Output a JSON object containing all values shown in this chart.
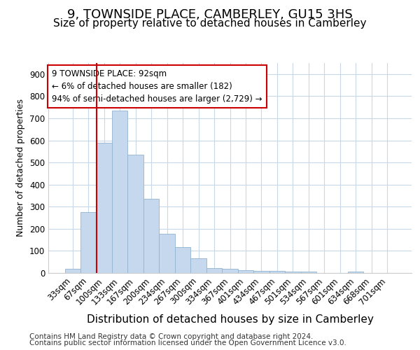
{
  "title": "9, TOWNSIDE PLACE, CAMBERLEY, GU15 3HS",
  "subtitle": "Size of property relative to detached houses in Camberley",
  "xlabel": "Distribution of detached houses by size in Camberley",
  "ylabel": "Number of detached properties",
  "categories": [
    "33sqm",
    "67sqm",
    "100sqm",
    "133sqm",
    "167sqm",
    "200sqm",
    "234sqm",
    "267sqm",
    "300sqm",
    "334sqm",
    "367sqm",
    "401sqm",
    "434sqm",
    "467sqm",
    "501sqm",
    "534sqm",
    "567sqm",
    "601sqm",
    "634sqm",
    "668sqm",
    "701sqm"
  ],
  "values": [
    20,
    275,
    590,
    735,
    535,
    335,
    178,
    118,
    68,
    22,
    20,
    12,
    8,
    8,
    6,
    5,
    0,
    0,
    7,
    0,
    0
  ],
  "bar_color": "#c5d8ed",
  "bar_edge_color": "#92b4d0",
  "grid_color": "#c8d8e8",
  "background_color": "#ffffff",
  "plot_bg_color": "#ffffff",
  "property_line_index": 2,
  "annotation_text": "9 TOWNSIDE PLACE: 92sqm\n← 6% of detached houses are smaller (182)\n94% of semi-detached houses are larger (2,729) →",
  "annotation_box_color": "#ffffff",
  "annotation_line_color": "#cc0000",
  "ylim": [
    0,
    950
  ],
  "yticks": [
    0,
    100,
    200,
    300,
    400,
    500,
    600,
    700,
    800,
    900
  ],
  "footer_line1": "Contains HM Land Registry data © Crown copyright and database right 2024.",
  "footer_line2": "Contains public sector information licensed under the Open Government Licence v3.0.",
  "title_fontsize": 13,
  "subtitle_fontsize": 11,
  "xlabel_fontsize": 11,
  "ylabel_fontsize": 9,
  "tick_fontsize": 8.5,
  "footer_fontsize": 7.5
}
